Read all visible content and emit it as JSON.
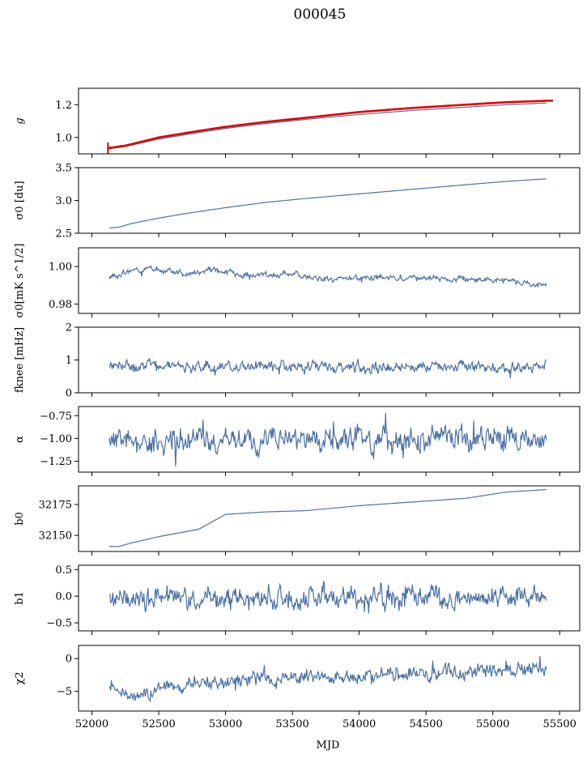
{
  "figure": {
    "title": "000045",
    "xlabel": "MJD",
    "colors": {
      "series": "#4c72a4",
      "fit": "#e00000",
      "axes": "#000000"
    }
  },
  "chart_data": [
    {
      "type": "line",
      "panel": "g",
      "ylabel": "g",
      "ylabel_italic": true,
      "xlim": [
        51900,
        55650
      ],
      "ylim": [
        0.9,
        1.3
      ],
      "yticks": [
        1.0,
        1.2
      ],
      "ytick_labels": [
        "1.0",
        "1.2"
      ],
      "series": [
        {
          "kind": "smooth",
          "color": "#4c72a4",
          "x": [
            52120,
            52250,
            52500,
            52800,
            53000,
            53300,
            53600,
            54000,
            54400,
            54800,
            55100,
            55400
          ],
          "y": [
            0.93,
            0.945,
            0.99,
            1.03,
            1.055,
            1.085,
            1.11,
            1.14,
            1.165,
            1.185,
            1.2,
            1.21
          ]
        },
        {
          "kind": "fit",
          "color": "#e00000",
          "x": [
            52120,
            52250,
            52500,
            52800,
            53000,
            53300,
            53600,
            54000,
            54400,
            54800,
            55100,
            55450
          ],
          "y": [
            0.935,
            0.95,
            1.0,
            1.04,
            1.065,
            1.095,
            1.12,
            1.155,
            1.18,
            1.2,
            1.215,
            1.225
          ]
        }
      ]
    },
    {
      "type": "line",
      "panel": "sigma0-du",
      "ylabel": "σ0 [du]",
      "xlim": [
        51900,
        55650
      ],
      "ylim": [
        2.5,
        3.5
      ],
      "yticks": [
        2.5,
        3.0,
        3.5
      ],
      "ytick_labels": [
        "2.5",
        "3.0",
        "3.5"
      ],
      "series": [
        {
          "kind": "smooth",
          "color": "#4c72a4",
          "x": [
            52130,
            52200,
            52300,
            52500,
            52700,
            53000,
            53300,
            53600,
            54000,
            54400,
            54800,
            55100,
            55400
          ],
          "y": [
            2.58,
            2.59,
            2.65,
            2.73,
            2.8,
            2.89,
            2.97,
            3.03,
            3.1,
            3.17,
            3.24,
            3.29,
            3.33
          ]
        }
      ]
    },
    {
      "type": "line",
      "panel": "sigma0-mk",
      "ylabel": "σ0[mK s^1/2]",
      "xlim": [
        51900,
        55650
      ],
      "ylim": [
        0.975,
        1.01
      ],
      "yticks": [
        0.98,
        1.0
      ],
      "ytick_labels": [
        "0.98",
        "1.00"
      ],
      "series": [
        {
          "kind": "noisy",
          "color": "#4c72a4",
          "x": [
            52130,
            52300,
            52500,
            52700,
            52900,
            53200,
            53500,
            53800,
            54100,
            54400,
            54700,
            55000,
            55200,
            55400
          ],
          "y": [
            0.994,
            0.998,
            0.999,
            0.996,
            0.998,
            0.995,
            0.996,
            0.993,
            0.994,
            0.994,
            0.993,
            0.993,
            0.992,
            0.99
          ],
          "amplitude": 0.0012,
          "seed": 3
        }
      ]
    },
    {
      "type": "line",
      "panel": "fknee",
      "ylabel": "fknee [mHz]",
      "xlim": [
        51900,
        55650
      ],
      "ylim": [
        0,
        2
      ],
      "yticks": [
        0,
        1,
        2
      ],
      "ytick_labels": [
        "0",
        "1",
        "2"
      ],
      "series": [
        {
          "kind": "noisy",
          "color": "#4c72a4",
          "x": [
            52130,
            53000,
            54000,
            55400
          ],
          "y": [
            0.85,
            0.82,
            0.8,
            0.78
          ],
          "amplitude": 0.13,
          "seed": 7
        }
      ]
    },
    {
      "type": "line",
      "panel": "alpha",
      "ylabel": "α",
      "xlim": [
        51900,
        55650
      ],
      "ylim": [
        -1.37,
        -0.65
      ],
      "yticks": [
        -1.25,
        -1.0,
        -0.75
      ],
      "ytick_labels": [
        "−1.25",
        "−1.00",
        "−0.75"
      ],
      "series": [
        {
          "kind": "noisy",
          "color": "#4c72a4",
          "x": [
            52130,
            55400
          ],
          "y": [
            -1.02,
            -1.0
          ],
          "amplitude": 0.11,
          "seed": 11
        }
      ]
    },
    {
      "type": "line",
      "panel": "b0",
      "ylabel": "b0",
      "xlim": [
        51900,
        55650
      ],
      "ylim": [
        32137,
        32190
      ],
      "yticks": [
        32150,
        32175
      ],
      "ytick_labels": [
        "32150",
        "32175"
      ],
      "series": [
        {
          "kind": "smooth",
          "color": "#4c72a4",
          "x": [
            52130,
            52200,
            52300,
            52500,
            52800,
            52900,
            53000,
            53300,
            53600,
            54000,
            54400,
            54800,
            55100,
            55400
          ],
          "y": [
            32141,
            32141,
            32144,
            32149,
            32155,
            32161,
            32167,
            32169,
            32170,
            32174,
            32177,
            32180,
            32185,
            32187
          ]
        }
      ]
    },
    {
      "type": "line",
      "panel": "b1",
      "ylabel": "b1",
      "xlim": [
        51900,
        55650
      ],
      "ylim": [
        -0.65,
        0.58
      ],
      "yticks": [
        -0.5,
        0.0,
        0.5
      ],
      "ytick_labels": [
        "−0.5",
        "0.0",
        "0.5"
      ],
      "series": [
        {
          "kind": "noisy",
          "color": "#4c72a4",
          "x": [
            52130,
            55400
          ],
          "y": [
            -0.05,
            0.0
          ],
          "amplitude": 0.17,
          "seed": 19
        }
      ]
    },
    {
      "type": "line",
      "panel": "chi2",
      "ylabel": "χ2",
      "xlim": [
        51900,
        55650
      ],
      "ylim": [
        -8,
        2
      ],
      "yticks": [
        -5,
        0
      ],
      "ytick_labels": [
        "−5",
        "0"
      ],
      "xticks": [
        52000,
        52500,
        53000,
        53500,
        54000,
        54500,
        55000,
        55500
      ],
      "xtick_labels": [
        "52000",
        "52500",
        "53000",
        "53500",
        "54000",
        "54500",
        "55000",
        "55500"
      ],
      "series": [
        {
          "kind": "noisy",
          "color": "#4c72a4",
          "x": [
            52130,
            52300,
            52500,
            53000,
            53500,
            54000,
            54500,
            55000,
            55400
          ],
          "y": [
            -5,
            -6,
            -4.5,
            -3.5,
            -3,
            -2.5,
            -2.2,
            -2,
            -2
          ],
          "amplitude": 0.9,
          "seed": 23
        }
      ]
    }
  ]
}
